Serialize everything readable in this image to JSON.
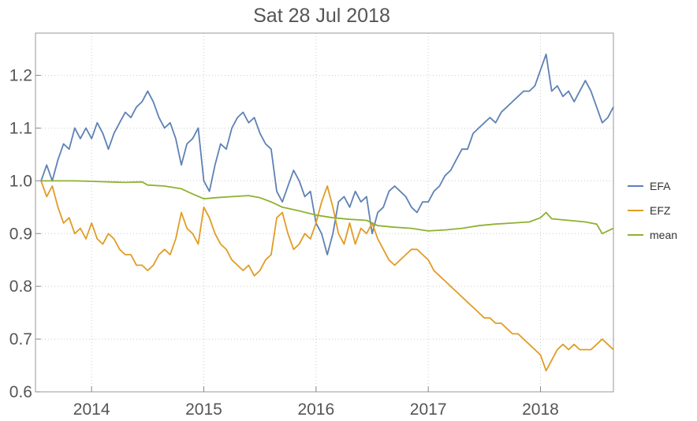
{
  "chart_data": {
    "type": "line",
    "title": "Sat 28 Jul 2018",
    "xlabel": "",
    "ylabel": "",
    "xlim": [
      2013.5,
      2018.65
    ],
    "ylim": [
      0.6,
      1.28
    ],
    "x_ticks": [
      {
        "value": 2014,
        "label": "2014"
      },
      {
        "value": 2015,
        "label": "2015"
      },
      {
        "value": 2016,
        "label": "2016"
      },
      {
        "value": 2017,
        "label": "2017"
      },
      {
        "value": 2018,
        "label": "2018"
      }
    ],
    "y_ticks": [
      {
        "value": 0.6,
        "label": "0.6"
      },
      {
        "value": 0.7,
        "label": "0.7"
      },
      {
        "value": 0.8,
        "label": "0.8"
      },
      {
        "value": 0.9,
        "label": "0.9"
      },
      {
        "value": 1.0,
        "label": "1.0"
      },
      {
        "value": 1.1,
        "label": "1.1"
      },
      {
        "value": 1.2,
        "label": "1.2"
      }
    ],
    "grid": true,
    "legend_position": "right",
    "series": [
      {
        "name": "EFA",
        "color": "#5e81b5",
        "points": [
          [
            2013.55,
            1.0
          ],
          [
            2013.6,
            1.03
          ],
          [
            2013.65,
            1.0
          ],
          [
            2013.7,
            1.04
          ],
          [
            2013.75,
            1.07
          ],
          [
            2013.8,
            1.06
          ],
          [
            2013.85,
            1.1
          ],
          [
            2013.9,
            1.08
          ],
          [
            2013.95,
            1.1
          ],
          [
            2014.0,
            1.08
          ],
          [
            2014.05,
            1.11
          ],
          [
            2014.1,
            1.09
          ],
          [
            2014.15,
            1.06
          ],
          [
            2014.2,
            1.09
          ],
          [
            2014.25,
            1.11
          ],
          [
            2014.3,
            1.13
          ],
          [
            2014.35,
            1.12
          ],
          [
            2014.4,
            1.14
          ],
          [
            2014.45,
            1.15
          ],
          [
            2014.5,
            1.17
          ],
          [
            2014.55,
            1.15
          ],
          [
            2014.6,
            1.12
          ],
          [
            2014.65,
            1.1
          ],
          [
            2014.7,
            1.11
          ],
          [
            2014.75,
            1.08
          ],
          [
            2014.8,
            1.03
          ],
          [
            2014.85,
            1.07
          ],
          [
            2014.9,
            1.08
          ],
          [
            2014.95,
            1.1
          ],
          [
            2015.0,
            1.0
          ],
          [
            2015.05,
            0.98
          ],
          [
            2015.1,
            1.03
          ],
          [
            2015.15,
            1.07
          ],
          [
            2015.2,
            1.06
          ],
          [
            2015.25,
            1.1
          ],
          [
            2015.3,
            1.12
          ],
          [
            2015.35,
            1.13
          ],
          [
            2015.4,
            1.11
          ],
          [
            2015.45,
            1.12
          ],
          [
            2015.5,
            1.09
          ],
          [
            2015.55,
            1.07
          ],
          [
            2015.6,
            1.06
          ],
          [
            2015.65,
            0.98
          ],
          [
            2015.7,
            0.96
          ],
          [
            2015.75,
            0.99
          ],
          [
            2015.8,
            1.02
          ],
          [
            2015.85,
            1.0
          ],
          [
            2015.9,
            0.97
          ],
          [
            2015.95,
            0.98
          ],
          [
            2016.0,
            0.92
          ],
          [
            2016.05,
            0.9
          ],
          [
            2016.1,
            0.86
          ],
          [
            2016.15,
            0.9
          ],
          [
            2016.2,
            0.96
          ],
          [
            2016.25,
            0.97
          ],
          [
            2016.3,
            0.95
          ],
          [
            2016.35,
            0.98
          ],
          [
            2016.4,
            0.96
          ],
          [
            2016.45,
            0.97
          ],
          [
            2016.5,
            0.9
          ],
          [
            2016.55,
            0.94
          ],
          [
            2016.6,
            0.95
          ],
          [
            2016.65,
            0.98
          ],
          [
            2016.7,
            0.99
          ],
          [
            2016.75,
            0.98
          ],
          [
            2016.8,
            0.97
          ],
          [
            2016.85,
            0.95
          ],
          [
            2016.9,
            0.94
          ],
          [
            2016.95,
            0.96
          ],
          [
            2017.0,
            0.96
          ],
          [
            2017.05,
            0.98
          ],
          [
            2017.1,
            0.99
          ],
          [
            2017.15,
            1.01
          ],
          [
            2017.2,
            1.02
          ],
          [
            2017.25,
            1.04
          ],
          [
            2017.3,
            1.06
          ],
          [
            2017.35,
            1.06
          ],
          [
            2017.4,
            1.09
          ],
          [
            2017.45,
            1.1
          ],
          [
            2017.5,
            1.11
          ],
          [
            2017.55,
            1.12
          ],
          [
            2017.6,
            1.11
          ],
          [
            2017.65,
            1.13
          ],
          [
            2017.7,
            1.14
          ],
          [
            2017.75,
            1.15
          ],
          [
            2017.8,
            1.16
          ],
          [
            2017.85,
            1.17
          ],
          [
            2017.9,
            1.17
          ],
          [
            2017.95,
            1.18
          ],
          [
            2018.0,
            1.21
          ],
          [
            2018.05,
            1.24
          ],
          [
            2018.1,
            1.17
          ],
          [
            2018.15,
            1.18
          ],
          [
            2018.2,
            1.16
          ],
          [
            2018.25,
            1.17
          ],
          [
            2018.3,
            1.15
          ],
          [
            2018.35,
            1.17
          ],
          [
            2018.4,
            1.19
          ],
          [
            2018.45,
            1.17
          ],
          [
            2018.5,
            1.14
          ],
          [
            2018.55,
            1.11
          ],
          [
            2018.6,
            1.12
          ],
          [
            2018.65,
            1.14
          ]
        ]
      },
      {
        "name": "EFZ",
        "color": "#e19c24",
        "points": [
          [
            2013.55,
            1.0
          ],
          [
            2013.6,
            0.97
          ],
          [
            2013.65,
            0.99
          ],
          [
            2013.7,
            0.95
          ],
          [
            2013.75,
            0.92
          ],
          [
            2013.8,
            0.93
          ],
          [
            2013.85,
            0.9
          ],
          [
            2013.9,
            0.91
          ],
          [
            2013.95,
            0.89
          ],
          [
            2014.0,
            0.92
          ],
          [
            2014.05,
            0.89
          ],
          [
            2014.1,
            0.88
          ],
          [
            2014.15,
            0.9
          ],
          [
            2014.2,
            0.89
          ],
          [
            2014.25,
            0.87
          ],
          [
            2014.3,
            0.86
          ],
          [
            2014.35,
            0.86
          ],
          [
            2014.4,
            0.84
          ],
          [
            2014.45,
            0.84
          ],
          [
            2014.5,
            0.83
          ],
          [
            2014.55,
            0.84
          ],
          [
            2014.6,
            0.86
          ],
          [
            2014.65,
            0.87
          ],
          [
            2014.7,
            0.86
          ],
          [
            2014.75,
            0.89
          ],
          [
            2014.8,
            0.94
          ],
          [
            2014.85,
            0.91
          ],
          [
            2014.9,
            0.9
          ],
          [
            2014.95,
            0.88
          ],
          [
            2015.0,
            0.95
          ],
          [
            2015.05,
            0.93
          ],
          [
            2015.1,
            0.9
          ],
          [
            2015.15,
            0.88
          ],
          [
            2015.2,
            0.87
          ],
          [
            2015.25,
            0.85
          ],
          [
            2015.3,
            0.84
          ],
          [
            2015.35,
            0.83
          ],
          [
            2015.4,
            0.84
          ],
          [
            2015.45,
            0.82
          ],
          [
            2015.5,
            0.83
          ],
          [
            2015.55,
            0.85
          ],
          [
            2015.6,
            0.86
          ],
          [
            2015.65,
            0.93
          ],
          [
            2015.7,
            0.94
          ],
          [
            2015.75,
            0.9
          ],
          [
            2015.8,
            0.87
          ],
          [
            2015.85,
            0.88
          ],
          [
            2015.9,
            0.9
          ],
          [
            2015.95,
            0.89
          ],
          [
            2016.0,
            0.92
          ],
          [
            2016.05,
            0.96
          ],
          [
            2016.1,
            0.99
          ],
          [
            2016.15,
            0.95
          ],
          [
            2016.2,
            0.9
          ],
          [
            2016.25,
            0.88
          ],
          [
            2016.3,
            0.92
          ],
          [
            2016.35,
            0.88
          ],
          [
            2016.4,
            0.91
          ],
          [
            2016.45,
            0.9
          ],
          [
            2016.5,
            0.92
          ],
          [
            2016.55,
            0.89
          ],
          [
            2016.6,
            0.87
          ],
          [
            2016.65,
            0.85
          ],
          [
            2016.7,
            0.84
          ],
          [
            2016.75,
            0.85
          ],
          [
            2016.8,
            0.86
          ],
          [
            2016.85,
            0.87
          ],
          [
            2016.9,
            0.87
          ],
          [
            2016.95,
            0.86
          ],
          [
            2017.0,
            0.85
          ],
          [
            2017.05,
            0.83
          ],
          [
            2017.1,
            0.82
          ],
          [
            2017.15,
            0.81
          ],
          [
            2017.2,
            0.8
          ],
          [
            2017.25,
            0.79
          ],
          [
            2017.3,
            0.78
          ],
          [
            2017.35,
            0.77
          ],
          [
            2017.4,
            0.76
          ],
          [
            2017.45,
            0.75
          ],
          [
            2017.5,
            0.74
          ],
          [
            2017.55,
            0.74
          ],
          [
            2017.6,
            0.73
          ],
          [
            2017.65,
            0.73
          ],
          [
            2017.7,
            0.72
          ],
          [
            2017.75,
            0.71
          ],
          [
            2017.8,
            0.71
          ],
          [
            2017.85,
            0.7
          ],
          [
            2017.9,
            0.69
          ],
          [
            2017.95,
            0.68
          ],
          [
            2018.0,
            0.67
          ],
          [
            2018.05,
            0.64
          ],
          [
            2018.1,
            0.66
          ],
          [
            2018.15,
            0.68
          ],
          [
            2018.2,
            0.69
          ],
          [
            2018.25,
            0.68
          ],
          [
            2018.3,
            0.69
          ],
          [
            2018.35,
            0.68
          ],
          [
            2018.4,
            0.68
          ],
          [
            2018.45,
            0.68
          ],
          [
            2018.5,
            0.69
          ],
          [
            2018.55,
            0.7
          ],
          [
            2018.6,
            0.69
          ],
          [
            2018.65,
            0.68
          ]
        ]
      },
      {
        "name": "mean",
        "color": "#8fb131",
        "points": [
          [
            2013.55,
            1.0
          ],
          [
            2013.7,
            1.0
          ],
          [
            2013.85,
            1.0
          ],
          [
            2014.0,
            0.999
          ],
          [
            2014.15,
            0.998
          ],
          [
            2014.3,
            0.997
          ],
          [
            2014.45,
            0.998
          ],
          [
            2014.5,
            0.992
          ],
          [
            2014.65,
            0.99
          ],
          [
            2014.8,
            0.985
          ],
          [
            2014.9,
            0.975
          ],
          [
            2015.0,
            0.966
          ],
          [
            2015.1,
            0.968
          ],
          [
            2015.25,
            0.97
          ],
          [
            2015.4,
            0.972
          ],
          [
            2015.5,
            0.968
          ],
          [
            2015.6,
            0.96
          ],
          [
            2015.7,
            0.95
          ],
          [
            2015.85,
            0.943
          ],
          [
            2016.0,
            0.935
          ],
          [
            2016.15,
            0.93
          ],
          [
            2016.3,
            0.927
          ],
          [
            2016.45,
            0.925
          ],
          [
            2016.55,
            0.915
          ],
          [
            2016.7,
            0.912
          ],
          [
            2016.85,
            0.91
          ],
          [
            2017.0,
            0.905
          ],
          [
            2017.15,
            0.907
          ],
          [
            2017.3,
            0.91
          ],
          [
            2017.45,
            0.915
          ],
          [
            2017.6,
            0.918
          ],
          [
            2017.75,
            0.92
          ],
          [
            2017.9,
            0.922
          ],
          [
            2018.0,
            0.93
          ],
          [
            2018.05,
            0.94
          ],
          [
            2018.1,
            0.928
          ],
          [
            2018.25,
            0.925
          ],
          [
            2018.4,
            0.922
          ],
          [
            2018.5,
            0.918
          ],
          [
            2018.55,
            0.9
          ],
          [
            2018.6,
            0.905
          ],
          [
            2018.65,
            0.91
          ]
        ]
      }
    ]
  }
}
